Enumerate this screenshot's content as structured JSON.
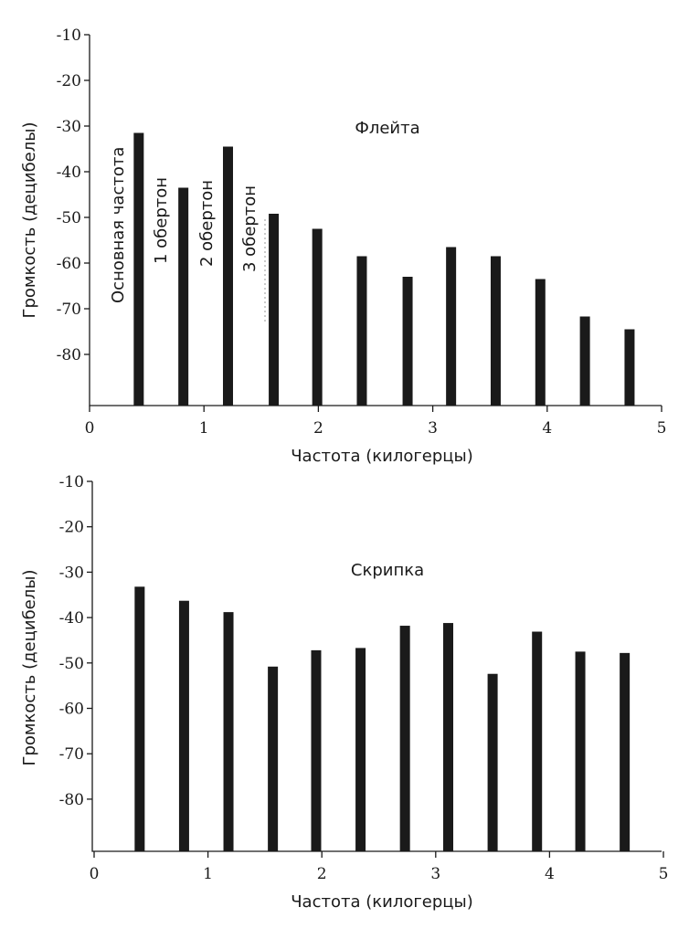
{
  "chart_data": [
    {
      "type": "bar",
      "title": "Флейта",
      "xlabel": "Частота (килогерцы)",
      "ylabel": "Громкость (децибелы)",
      "xlim": [
        0,
        5
      ],
      "xticks": [
        "0",
        "1",
        "2",
        "3",
        "4",
        "5"
      ],
      "yticks": [
        "-10",
        "-20",
        "-30",
        "-40",
        "-50",
        "-60",
        "-70",
        "-80"
      ],
      "y_direction": "downward",
      "x": [
        0.43,
        0.82,
        1.21,
        1.61,
        1.99,
        2.38,
        2.78,
        3.16,
        3.55,
        3.94,
        4.33,
        4.72
      ],
      "values": [
        -31.5,
        -43.5,
        -34.5,
        -49.2,
        -52.5,
        -58.5,
        -63,
        -56.5,
        -58.5,
        -63.5,
        -71.7,
        -74.5
      ],
      "annotations": [
        "Основная частота",
        "1 обертон",
        "2 обертон",
        "3 обертон"
      ]
    },
    {
      "type": "bar",
      "title": "Скрипка",
      "xlabel": "Частота (килогерцы)",
      "ylabel": "Громкость (децибелы)",
      "xlim": [
        0,
        5
      ],
      "xticks": [
        "0",
        "1",
        "2",
        "3",
        "4",
        "5"
      ],
      "yticks": [
        "-10",
        "-20",
        "-30",
        "-40",
        "-50",
        "-60",
        "-70",
        "-80"
      ],
      "y_direction": "downward",
      "x": [
        0.4,
        0.79,
        1.18,
        1.57,
        1.95,
        2.34,
        2.73,
        3.11,
        3.5,
        3.89,
        4.27,
        4.66
      ],
      "values": [
        -33.2,
        -36.3,
        -38.8,
        -50.8,
        -47.2,
        -46.7,
        -41.8,
        -41.2,
        -52.4,
        -43.1,
        -47.5,
        -47.8
      ],
      "annotations": []
    }
  ]
}
